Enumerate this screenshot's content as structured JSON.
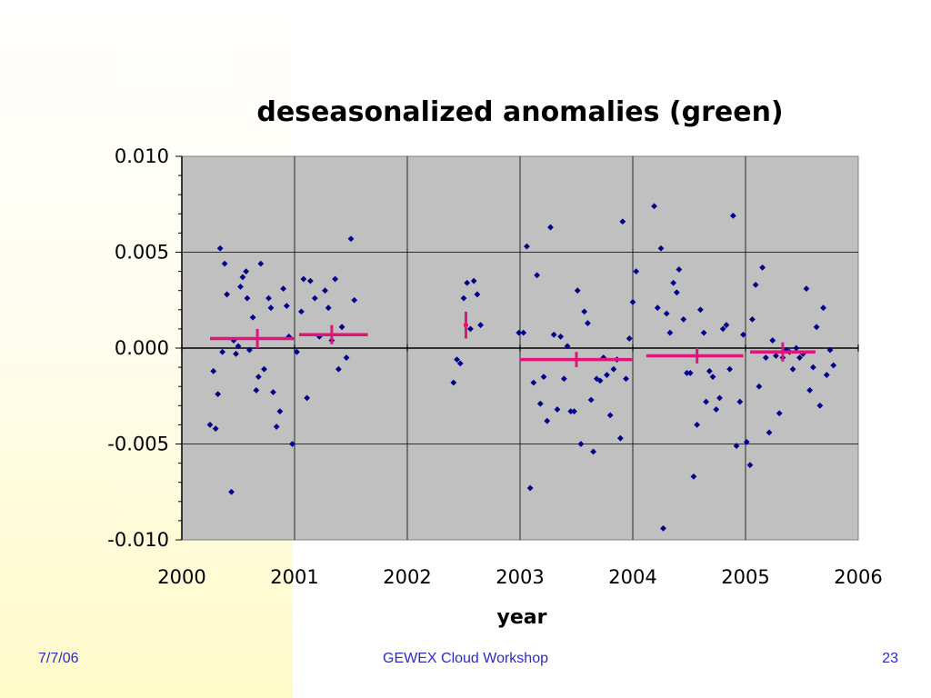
{
  "footer": {
    "date": "7/7/06",
    "event": "GEWEX Cloud Workshop",
    "page": "23"
  },
  "colors": {
    "plot_bg": "#c0c0c0",
    "points": "#00008b",
    "means": "#e0147a",
    "page_glow": "#fffbd0"
  },
  "chart_data": {
    "type": "scatter",
    "title": "deseasonalized anomalies (green)",
    "xlabel": "year",
    "ylabel": "",
    "xlim": [
      2000,
      2006
    ],
    "ylim": [
      -0.01,
      0.01
    ],
    "grid": true,
    "legend": "none",
    "x_ticks": [
      "2000",
      "2001",
      "2002",
      "2003",
      "2004",
      "2005",
      "2006"
    ],
    "y_ticks": [
      "0.010",
      "0.005",
      "0.000",
      "-0.005",
      "-0.010"
    ],
    "series": [
      {
        "marker": "diamond",
        "points": [
          [
            2000.25,
            -0.004
          ],
          [
            2000.28,
            -0.0012
          ],
          [
            2000.3,
            -0.0042
          ],
          [
            2000.32,
            -0.0024
          ],
          [
            2000.34,
            0.0052
          ],
          [
            2000.36,
            -0.0002
          ],
          [
            2000.38,
            0.0044
          ],
          [
            2000.4,
            0.0028
          ],
          [
            2000.44,
            -0.0075
          ],
          [
            2000.46,
            0.0004
          ],
          [
            2000.48,
            -0.0003
          ],
          [
            2000.5,
            0.0001
          ],
          [
            2000.52,
            0.0032
          ],
          [
            2000.54,
            0.0037
          ],
          [
            2000.57,
            0.004
          ],
          [
            2000.58,
            0.0026
          ],
          [
            2000.6,
            -0.0001
          ],
          [
            2000.63,
            0.0016
          ],
          [
            2000.66,
            -0.0022
          ],
          [
            2000.68,
            -0.0015
          ],
          [
            2000.7,
            0.0044
          ],
          [
            2000.73,
            -0.0011
          ],
          [
            2000.77,
            0.0026
          ],
          [
            2000.79,
            0.0021
          ],
          [
            2000.81,
            -0.0023
          ],
          [
            2000.84,
            -0.0041
          ],
          [
            2000.87,
            -0.0033
          ],
          [
            2000.9,
            0.0031
          ],
          [
            2000.93,
            0.0022
          ],
          [
            2000.95,
            0.0006
          ],
          [
            2000.98,
            -0.005
          ],
          [
            2001.02,
            -0.0002
          ],
          [
            2001.06,
            0.0019
          ],
          [
            2001.08,
            0.0036
          ],
          [
            2001.11,
            -0.0026
          ],
          [
            2001.14,
            0.0035
          ],
          [
            2001.18,
            0.0026
          ],
          [
            2001.22,
            0.0006
          ],
          [
            2001.27,
            0.003
          ],
          [
            2001.3,
            0.0021
          ],
          [
            2001.33,
            0.0004
          ],
          [
            2001.36,
            0.0036
          ],
          [
            2001.39,
            -0.0011
          ],
          [
            2001.42,
            0.0011
          ],
          [
            2001.46,
            -0.0005
          ],
          [
            2001.5,
            0.0057
          ],
          [
            2001.53,
            0.0025
          ],
          [
            2002.41,
            -0.0018
          ],
          [
            2002.44,
            -0.0006
          ],
          [
            2002.47,
            -0.0008
          ],
          [
            2002.5,
            0.0026
          ],
          [
            2002.53,
            0.0034
          ],
          [
            2002.56,
            0.001
          ],
          [
            2002.59,
            0.0035
          ],
          [
            2002.62,
            0.0028
          ],
          [
            2002.65,
            0.0012
          ],
          [
            2002.99,
            0.0008
          ],
          [
            2003.03,
            0.0008
          ],
          [
            2003.06,
            0.0053
          ],
          [
            2003.09,
            -0.0073
          ],
          [
            2003.12,
            -0.0018
          ],
          [
            2003.15,
            0.0038
          ],
          [
            2003.18,
            -0.0029
          ],
          [
            2003.21,
            -0.0015
          ],
          [
            2003.24,
            -0.0038
          ],
          [
            2003.27,
            0.0063
          ],
          [
            2003.3,
            0.0007
          ],
          [
            2003.33,
            -0.0032
          ],
          [
            2003.36,
            0.0006
          ],
          [
            2003.39,
            -0.0016
          ],
          [
            2003.42,
            0.0001
          ],
          [
            2003.45,
            -0.0033
          ],
          [
            2003.48,
            -0.0033
          ],
          [
            2003.51,
            0.003
          ],
          [
            2003.54,
            -0.005
          ],
          [
            2003.57,
            0.0019
          ],
          [
            2003.6,
            0.0013
          ],
          [
            2003.63,
            -0.0027
          ],
          [
            2003.65,
            -0.0054
          ],
          [
            2003.68,
            -0.0016
          ],
          [
            2003.71,
            -0.0017
          ],
          [
            2003.74,
            -0.0005
          ],
          [
            2003.77,
            -0.0014
          ],
          [
            2003.8,
            -0.0035
          ],
          [
            2003.83,
            -0.0011
          ],
          [
            2003.86,
            -0.0006
          ],
          [
            2003.89,
            -0.0047
          ],
          [
            2003.91,
            0.0066
          ],
          [
            2003.94,
            -0.0016
          ],
          [
            2003.97,
            0.0005
          ],
          [
            2004.0,
            0.0024
          ],
          [
            2004.03,
            0.004
          ],
          [
            2004.19,
            0.0074
          ],
          [
            2004.22,
            0.0021
          ],
          [
            2004.25,
            0.0052
          ],
          [
            2004.27,
            -0.0094
          ],
          [
            2004.3,
            0.0018
          ],
          [
            2004.33,
            0.0008
          ],
          [
            2004.36,
            0.0034
          ],
          [
            2004.39,
            0.0029
          ],
          [
            2004.41,
            0.0041
          ],
          [
            2004.45,
            0.0015
          ],
          [
            2004.48,
            -0.0013
          ],
          [
            2004.51,
            -0.0013
          ],
          [
            2004.54,
            -0.0067
          ],
          [
            2004.57,
            -0.004
          ],
          [
            2004.6,
            0.002
          ],
          [
            2004.63,
            0.0008
          ],
          [
            2004.65,
            -0.0028
          ],
          [
            2004.68,
            -0.0012
          ],
          [
            2004.71,
            -0.0015
          ],
          [
            2004.74,
            -0.0032
          ],
          [
            2004.77,
            -0.0026
          ],
          [
            2004.8,
            0.001
          ],
          [
            2004.83,
            0.0012
          ],
          [
            2004.86,
            -0.0011
          ],
          [
            2004.89,
            0.0069
          ],
          [
            2004.92,
            -0.0051
          ],
          [
            2004.95,
            -0.0028
          ],
          [
            2004.98,
            0.0007
          ],
          [
            2005.01,
            -0.0049
          ],
          [
            2005.04,
            -0.0061
          ],
          [
            2005.06,
            0.0015
          ],
          [
            2005.09,
            0.0033
          ],
          [
            2005.12,
            -0.002
          ],
          [
            2005.15,
            0.0042
          ],
          [
            2005.18,
            -0.0005
          ],
          [
            2005.21,
            -0.0044
          ],
          [
            2005.24,
            0.0004
          ],
          [
            2005.27,
            -0.0004
          ],
          [
            2005.3,
            -0.0034
          ],
          [
            2005.33,
            -0.0005
          ],
          [
            2005.36,
            -0.0001
          ],
          [
            2005.39,
            -0.0002
          ],
          [
            2005.42,
            -0.0011
          ],
          [
            2005.45,
            0.0
          ],
          [
            2005.48,
            -0.0005
          ],
          [
            2005.51,
            -0.0003
          ],
          [
            2005.54,
            0.0031
          ],
          [
            2005.57,
            -0.0022
          ],
          [
            2005.6,
            -0.001
          ],
          [
            2005.63,
            0.0011
          ],
          [
            2005.66,
            -0.003
          ],
          [
            2005.69,
            0.0021
          ],
          [
            2005.72,
            -0.0014
          ],
          [
            2005.75,
            -0.0001
          ],
          [
            2005.78,
            -0.0009
          ]
        ]
      }
    ],
    "annual_means": [
      {
        "x_start": 2000.25,
        "x_end": 2001.0,
        "x_mid": 2000.67,
        "y": 0.0005,
        "y_err": 0.0005
      },
      {
        "x_start": 2001.04,
        "x_end": 2001.65,
        "x_mid": 2001.33,
        "y": 0.0007,
        "y_err": 0.0005
      },
      {
        "x_start": 2002.5,
        "x_end": 2002.54,
        "x_mid": 2002.52,
        "y": 0.0012,
        "y_err": 0.0007
      },
      {
        "x_start": 2003.0,
        "x_end": 2004.0,
        "x_mid": 2003.5,
        "y": -0.0006,
        "y_err": 0.0004
      },
      {
        "x_start": 2004.12,
        "x_end": 2004.98,
        "x_mid": 2004.57,
        "y": -0.0004,
        "y_err": 0.0004
      },
      {
        "x_start": 2005.04,
        "x_end": 2005.62,
        "x_mid": 2005.33,
        "y": -0.0002,
        "y_err": 0.0005
      }
    ]
  }
}
